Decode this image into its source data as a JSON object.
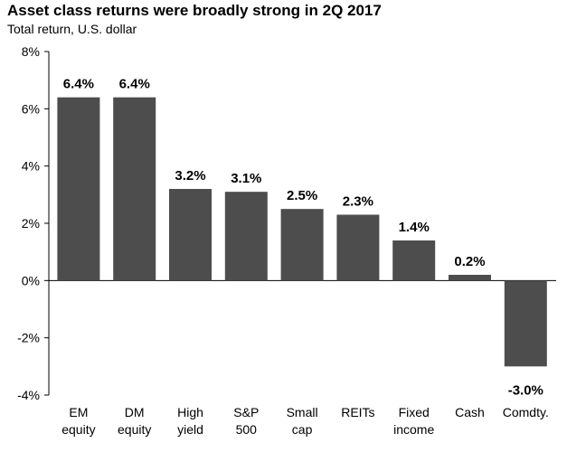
{
  "chart_data": {
    "type": "bar",
    "title": "Asset class returns were broadly strong in 2Q 2017",
    "subtitle": "Total return, U.S. dollar",
    "categories": [
      [
        "EM",
        "equity"
      ],
      [
        "DM",
        "equity"
      ],
      [
        "High",
        "yield"
      ],
      [
        "S&P",
        "500"
      ],
      [
        "Small",
        "cap"
      ],
      [
        "REITs"
      ],
      [
        "Fixed",
        "income"
      ],
      [
        "Cash"
      ],
      [
        "Comdty."
      ]
    ],
    "values": [
      6.4,
      6.4,
      3.2,
      3.1,
      2.5,
      2.3,
      1.4,
      0.2,
      -3.0
    ],
    "data_labels": [
      "6.4%",
      "6.4%",
      "3.2%",
      "3.1%",
      "2.5%",
      "2.3%",
      "1.4%",
      "0.2%",
      "-3.0%"
    ],
    "yticks": [
      8,
      6,
      4,
      2,
      0,
      -2,
      -4
    ],
    "ytick_labels": [
      "8%",
      "6%",
      "4%",
      "2%",
      "0%",
      "-2%",
      "-4%"
    ],
    "ylim": [
      -4,
      8
    ],
    "xlabel": "",
    "ylabel": "",
    "bar_color": "#4d4d4d",
    "grid": false,
    "legend": "none"
  }
}
